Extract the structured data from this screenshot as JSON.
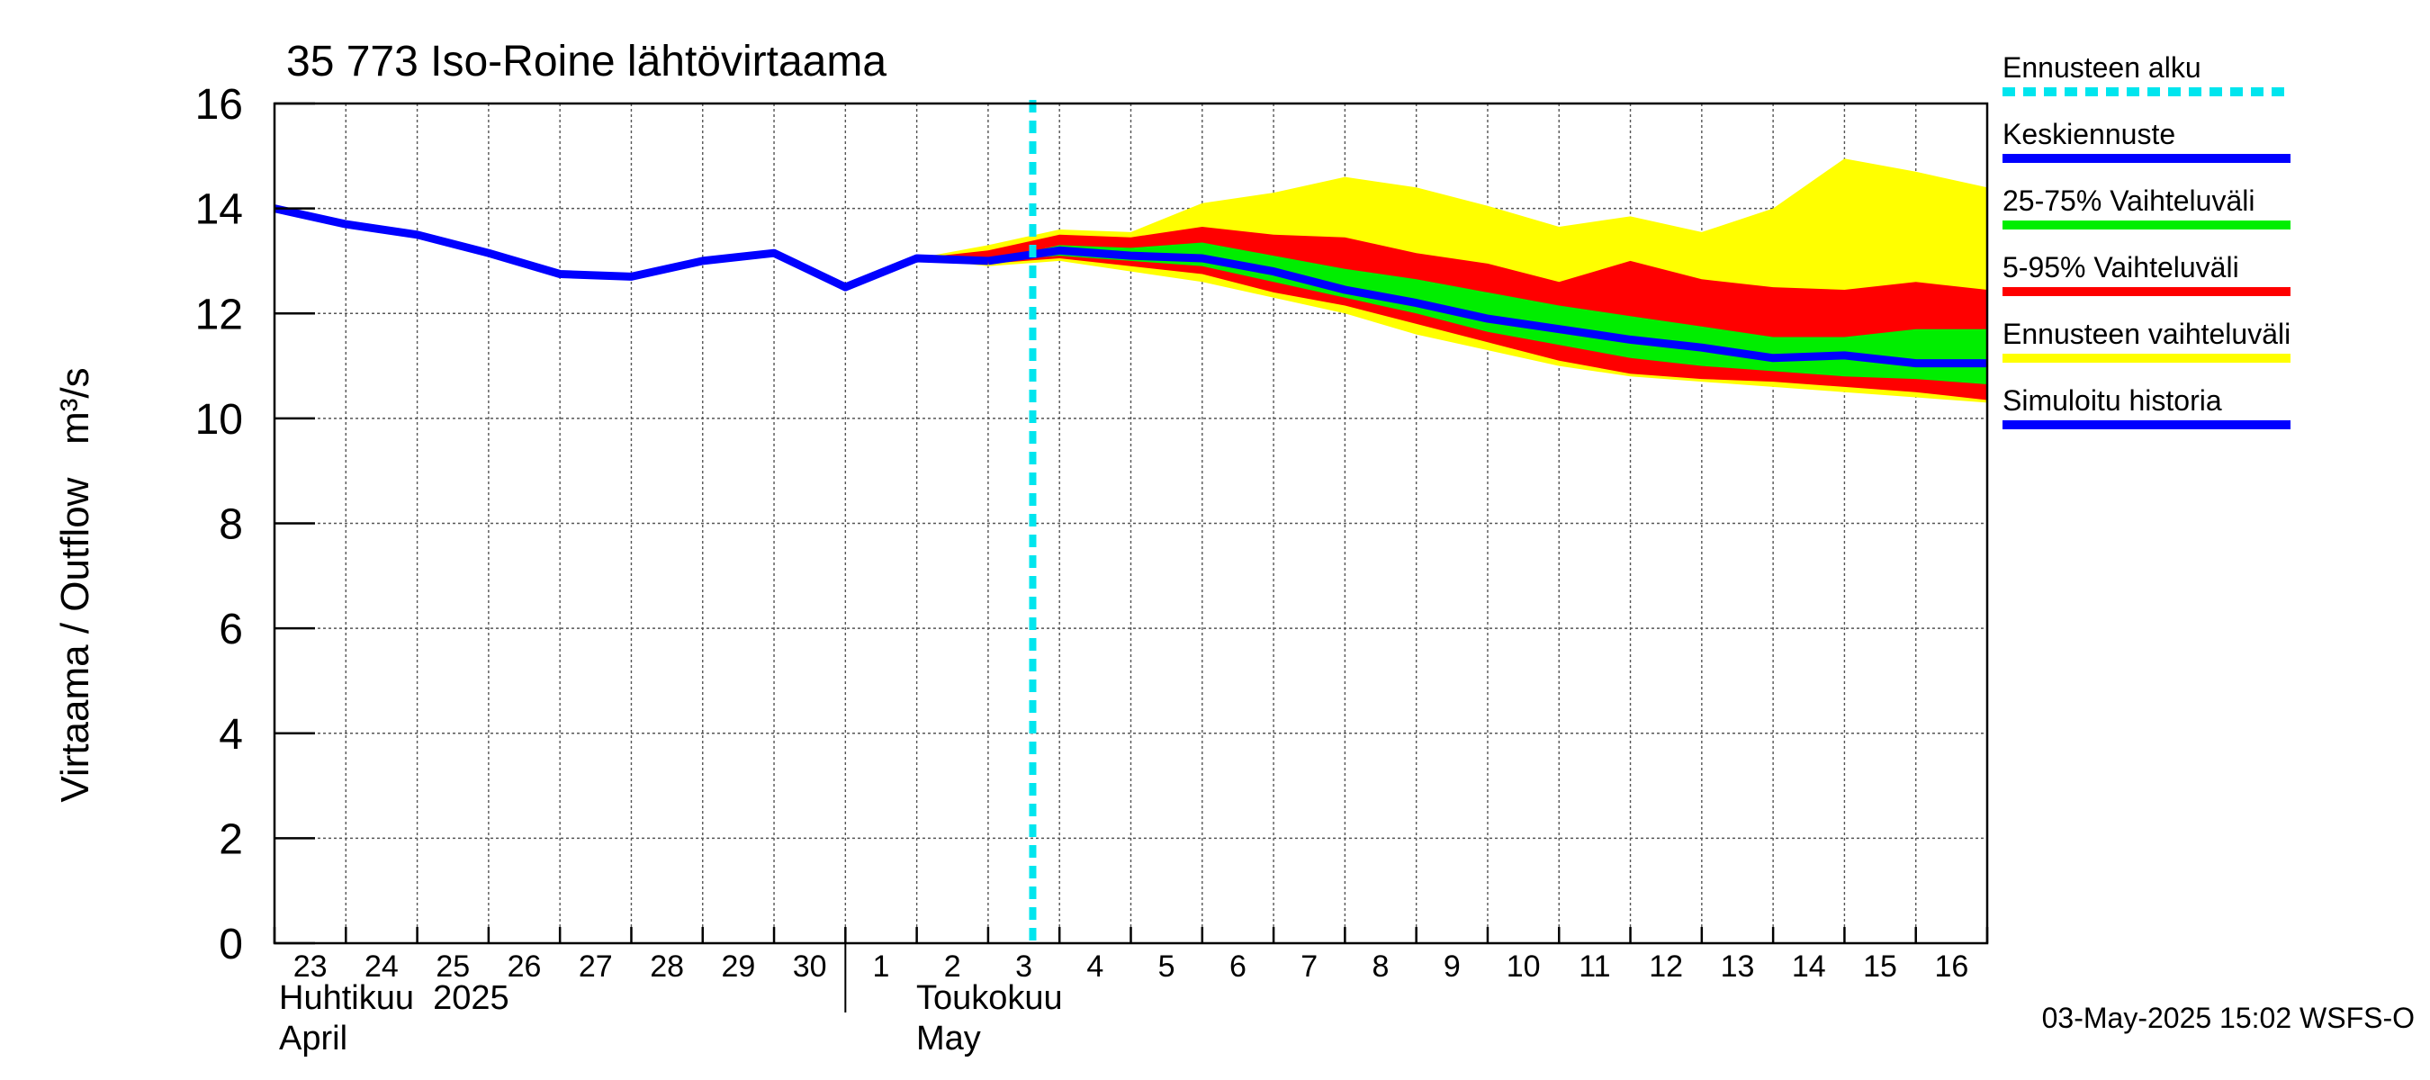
{
  "chart_data": {
    "type": "area",
    "title": "35 773 Iso-Roine lähtövirtaama",
    "ylabel": "Virtaama / Outflow   m³/s",
    "ylim": [
      0,
      16
    ],
    "yticks": [
      "0",
      "2",
      "4",
      "6",
      "8",
      "10",
      "12",
      "14",
      "16"
    ],
    "xlim": [
      "2025-04-23",
      "2025-05-16 24:00"
    ],
    "x_day_labels": [
      "23",
      "24",
      "25",
      "26",
      "27",
      "28",
      "29",
      "30",
      "1",
      "2",
      "3",
      "4",
      "5",
      "6",
      "7",
      "8",
      "9",
      "10",
      "11",
      "12",
      "13",
      "14",
      "15",
      "16"
    ],
    "x_month_labels": [
      {
        "fi": "Huhtikuu  2025",
        "en": "April"
      },
      {
        "fi": "Toukokuu",
        "en": "May"
      }
    ],
    "forecast_start": "2025-05-03 15:00",
    "grid": true,
    "legend_position": "right",
    "footer": "03-May-2025 15:02 WSFS-O",
    "legend": [
      {
        "label": "Ennusteen alku",
        "color": "#00e5ee",
        "style": "dashed"
      },
      {
        "label": "Keskiennuste",
        "color": "#0000ff",
        "style": "solid"
      },
      {
        "label": "25-75% Vaihteluväli",
        "color": "#00ee00",
        "style": "solid"
      },
      {
        "label": "5-95% Vaihteluväli",
        "color": "#ff0000",
        "style": "solid"
      },
      {
        "label": "Ennusteen vaihteluväli",
        "color": "#ffff00",
        "style": "solid"
      },
      {
        "label": "Simuloitu historia",
        "color": "#0000ff",
        "style": "solid"
      }
    ],
    "series": [
      {
        "name": "Simuloitu historia",
        "x": [
          "2025-04-23",
          "2025-04-24",
          "2025-04-25",
          "2025-04-26",
          "2025-04-27",
          "2025-04-28",
          "2025-04-29",
          "2025-04-30",
          "2025-05-01",
          "2025-05-02",
          "2025-05-03"
        ],
        "values": [
          14.0,
          13.7,
          13.5,
          13.15,
          12.75,
          12.7,
          13.0,
          13.15,
          12.5,
          13.05,
          13.0
        ]
      },
      {
        "name": "Keskiennuste",
        "x": [
          "2025-05-03",
          "2025-05-04",
          "2025-05-05",
          "2025-05-06",
          "2025-05-07",
          "2025-05-08",
          "2025-05-09",
          "2025-05-10",
          "2025-05-11",
          "2025-05-12",
          "2025-05-13",
          "2025-05-14",
          "2025-05-15",
          "2025-05-16",
          "2025-05-16 24:00"
        ],
        "values": [
          13.0,
          13.2,
          13.1,
          13.05,
          12.8,
          12.45,
          12.2,
          11.9,
          11.7,
          11.5,
          11.35,
          11.15,
          11.2,
          11.05,
          11.05
        ]
      }
    ],
    "bands": [
      {
        "name": "Ennusteen vaihteluväli",
        "color": "#ffff00",
        "x": [
          "2025-05-02",
          "2025-05-03",
          "2025-05-04",
          "2025-05-05",
          "2025-05-06",
          "2025-05-07",
          "2025-05-08",
          "2025-05-09",
          "2025-05-10",
          "2025-05-11",
          "2025-05-12",
          "2025-05-13",
          "2025-05-14",
          "2025-05-15",
          "2025-05-16",
          "2025-05-16 24:00"
        ],
        "upper": [
          13.05,
          13.3,
          13.6,
          13.55,
          14.1,
          14.3,
          14.6,
          14.4,
          14.05,
          13.65,
          13.85,
          13.55,
          14.0,
          14.95,
          14.7,
          14.4
        ],
        "lower": [
          13.05,
          12.9,
          13.0,
          12.8,
          12.6,
          12.3,
          12.0,
          11.6,
          11.3,
          11.0,
          10.8,
          10.7,
          10.6,
          10.5,
          10.4,
          10.3
        ]
      },
      {
        "name": "5-95% Vaihteluväli",
        "color": "#ff0000",
        "x": [
          "2025-05-02",
          "2025-05-03",
          "2025-05-04",
          "2025-05-05",
          "2025-05-06",
          "2025-05-07",
          "2025-05-08",
          "2025-05-09",
          "2025-05-10",
          "2025-05-11",
          "2025-05-12",
          "2025-05-13",
          "2025-05-14",
          "2025-05-15",
          "2025-05-16",
          "2025-05-16 24:00"
        ],
        "upper": [
          13.05,
          13.2,
          13.5,
          13.45,
          13.65,
          13.5,
          13.45,
          13.15,
          12.95,
          12.6,
          13.0,
          12.65,
          12.5,
          12.45,
          12.6,
          12.45
        ],
        "lower": [
          13.05,
          12.95,
          13.05,
          12.9,
          12.75,
          12.4,
          12.15,
          11.8,
          11.45,
          11.1,
          10.85,
          10.75,
          10.7,
          10.6,
          10.5,
          10.35
        ]
      },
      {
        "name": "25-75% Vaihteluväli",
        "color": "#00ee00",
        "x": [
          "2025-05-03",
          "2025-05-04",
          "2025-05-05",
          "2025-05-06",
          "2025-05-07",
          "2025-05-08",
          "2025-05-09",
          "2025-05-10",
          "2025-05-11",
          "2025-05-12",
          "2025-05-13",
          "2025-05-14",
          "2025-05-15",
          "2025-05-16",
          "2025-05-16 24:00"
        ],
        "upper": [
          13.0,
          13.3,
          13.25,
          13.35,
          13.1,
          12.85,
          12.65,
          12.4,
          12.15,
          11.95,
          11.75,
          11.55,
          11.55,
          11.7,
          11.7
        ],
        "lower": [
          13.0,
          13.1,
          13.0,
          12.9,
          12.6,
          12.3,
          12.0,
          11.65,
          11.4,
          11.15,
          11.0,
          10.9,
          10.8,
          10.75,
          10.65
        ]
      }
    ]
  }
}
